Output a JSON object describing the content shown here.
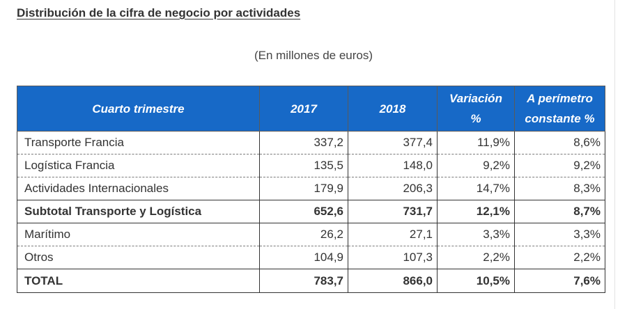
{
  "title": "Distribución de la cifra de negocio por actividades",
  "subtitle": "(En millones de euros)",
  "table": {
    "headers": {
      "activity": "Cuarto trimestre",
      "y2017": "2017",
      "y2018": "2018",
      "variation": "Variación %",
      "constant": "A perímetro constante %"
    },
    "rows": [
      {
        "activity": "Transporte Francia",
        "y2017": "337,2",
        "y2018": "377,4",
        "variation": "11,9%",
        "constant": "8,6%"
      },
      {
        "activity": "Logística Francia",
        "y2017": "135,5",
        "y2018": "148,0",
        "variation": "9,2%",
        "constant": "9,2%"
      },
      {
        "activity": "Actividades Internacionales",
        "y2017": "179,9",
        "y2018": "206,3",
        "variation": "14,7%",
        "constant": "8,3%"
      },
      {
        "activity": "Subtotal Transporte y Logística",
        "y2017": "652,6",
        "y2018": "731,7",
        "variation": "12,1%",
        "constant": "8,7%"
      },
      {
        "activity": "Marítimo",
        "y2017": "26,2",
        "y2018": "27,1",
        "variation": "3,3%",
        "constant": "3,3%"
      },
      {
        "activity": "Otros",
        "y2017": "104,9",
        "y2018": "107,3",
        "variation": "2,2%",
        "constant": "2,2%"
      },
      {
        "activity": "TOTAL",
        "y2017": "783,7",
        "y2018": "866,0",
        "variation": "10,5%",
        "constant": "7,6%"
      }
    ]
  },
  "colors": {
    "header_bg": "#1769c7",
    "header_text": "#ffffff",
    "body_text": "#333333"
  }
}
